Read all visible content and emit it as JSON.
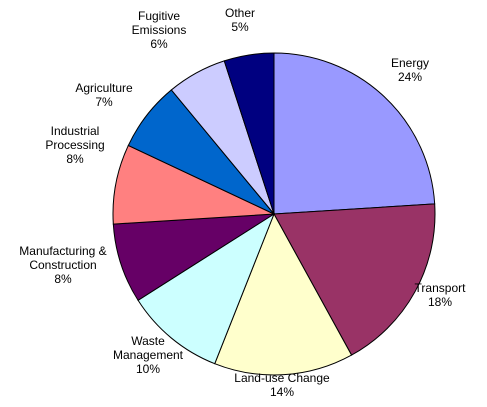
{
  "chart_data": {
    "type": "pie",
    "categories": [
      "Energy",
      "Transport",
      "Land-use Change",
      "Waste Management",
      "Manufacturing & Construction",
      "Industrial Processing",
      "Agriculture",
      "Fugitive Emissions",
      "Other"
    ],
    "values": [
      24,
      18,
      14,
      10,
      8,
      8,
      7,
      6,
      5
    ],
    "value_labels": [
      "24%",
      "18%",
      "14%",
      "10%",
      "8%",
      "8%",
      "7%",
      "6%",
      "5%"
    ],
    "colors": [
      "#9999ff",
      "#993366",
      "#ffffcc",
      "#ccffff",
      "#660066",
      "#ff8080",
      "#0066cc",
      "#ccccff",
      "#000080"
    ]
  }
}
